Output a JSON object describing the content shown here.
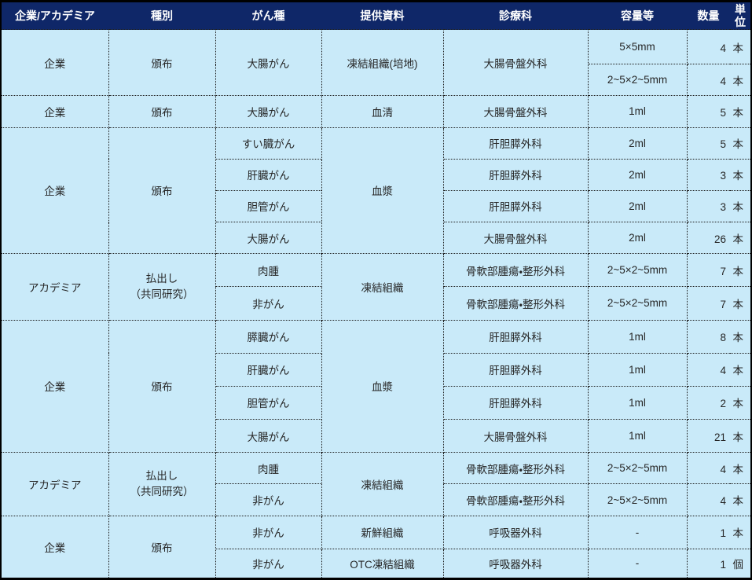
{
  "colors": {
    "header_bg": "#0f2768",
    "header_text": "#ffffff",
    "row_bg": "#c9eaf9",
    "body_text": "#262626",
    "grid_border": "#1a1a1a",
    "outer_border": "#000000"
  },
  "table": {
    "headers": {
      "org": "企業/アカデミア",
      "type": "種別",
      "cancer": "がん種",
      "material": "提供資料",
      "dept": "診療科",
      "volume": "容量等",
      "qty": "数量",
      "unit": "単位"
    },
    "rows": [
      {
        "org": "企業",
        "type": "頒布",
        "cancer": "大腸がん",
        "material": "凍結組織(培地)",
        "dept": "大腸骨盤外科",
        "volume": "5×5mm",
        "qty": "4",
        "unit": "本"
      },
      {
        "volume": "2~5×2~5mm",
        "qty": "4",
        "unit": "本"
      },
      {
        "org": "企業",
        "type": "頒布",
        "cancer": "大腸がん",
        "material": "血清",
        "dept": "大腸骨盤外科",
        "volume": "1ml",
        "qty": "5",
        "unit": "本"
      },
      {
        "org": "企業",
        "type": "頒布",
        "cancer": "すい臓がん",
        "material": "血漿",
        "dept": "肝胆膵外科",
        "volume": "2ml",
        "qty": "5",
        "unit": "本"
      },
      {
        "cancer": "肝臓がん",
        "dept": "肝胆膵外科",
        "volume": "2ml",
        "qty": "3",
        "unit": "本"
      },
      {
        "cancer": "胆管がん",
        "dept": "肝胆膵外科",
        "volume": "2ml",
        "qty": "3",
        "unit": "本"
      },
      {
        "cancer": "大腸がん",
        "dept": "大腸骨盤外科",
        "volume": "2ml",
        "qty": "26",
        "unit": "本"
      },
      {
        "org": "アカデミア",
        "type": "払出し\n（共同研究）",
        "cancer": "肉腫",
        "material": "凍結組織",
        "dept": "骨軟部腫瘍・整形外科",
        "volume": "2~5×2~5mm",
        "qty": "7",
        "unit": "本"
      },
      {
        "cancer": "非がん",
        "dept": "骨軟部腫瘍・整形外科",
        "volume": "2~5×2~5mm",
        "qty": "7",
        "unit": "本"
      },
      {
        "org": "企業",
        "type": "頒布",
        "cancer": "膵臓がん",
        "material": "血漿",
        "dept": "肝胆膵外科",
        "volume": "1ml",
        "qty": "8",
        "unit": "本"
      },
      {
        "cancer": "肝臓がん",
        "dept": "肝胆膵外科",
        "volume": "1ml",
        "qty": "4",
        "unit": "本"
      },
      {
        "cancer": "胆管がん",
        "dept": "肝胆膵外科",
        "volume": "1ml",
        "qty": "2",
        "unit": "本"
      },
      {
        "cancer": "大腸がん",
        "dept": "大腸骨盤外科",
        "volume": "1ml",
        "qty": "21",
        "unit": "本"
      },
      {
        "org": "アカデミア",
        "type": "払出し\n（共同研究）",
        "cancer": "肉腫",
        "material": "凍結組織",
        "dept": "骨軟部腫瘍・整形外科",
        "volume": "2~5×2~5mm",
        "qty": "4",
        "unit": "本"
      },
      {
        "cancer": "非がん",
        "dept": "骨軟部腫瘍・整形外科",
        "volume": "2~5×2~5mm",
        "qty": "4",
        "unit": "本"
      },
      {
        "org": "企業",
        "type": "頒布",
        "cancer": "非がん",
        "material": "新鮮組織",
        "dept": "呼吸器外科",
        "volume": "-",
        "qty": "1",
        "unit": "本"
      },
      {
        "cancer": "非がん",
        "material": "OTC凍結組織",
        "dept": "呼吸器外科",
        "volume": "-",
        "qty": "1",
        "unit": "個"
      }
    ]
  }
}
